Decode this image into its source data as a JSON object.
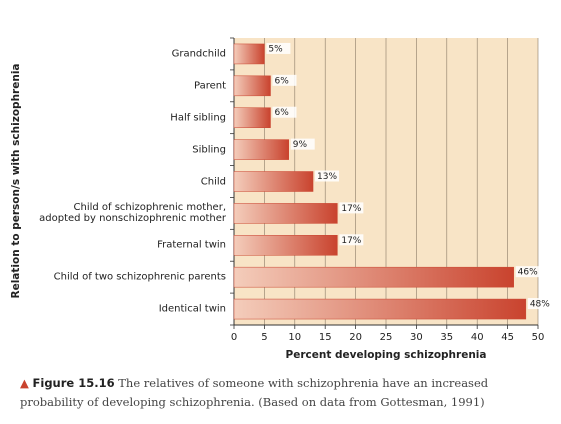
{
  "chart_data": {
    "type": "hbar",
    "ylabel": "Relation to person/s with schizophrenia",
    "xlabel": "Percent developing schizophrenia",
    "categories": [
      "Grandchild",
      "Parent",
      "Half sibling",
      "Sibling",
      "Child",
      "Child of schizophrenic mother,\nadopted by nonschizophrenic mother",
      "Fraternal twin",
      "Child of two schizophrenic parents",
      "Identical twin"
    ],
    "values": [
      5,
      6,
      6,
      9,
      13,
      17,
      17,
      46,
      48
    ],
    "value_labels": [
      "5%",
      "6%",
      "6%",
      "9%",
      "13%",
      "17%",
      "17%",
      "46%",
      "48%"
    ],
    "xlim": [
      0,
      50
    ],
    "xticks": [
      0,
      5,
      10,
      15,
      20,
      25,
      30,
      35,
      40,
      45,
      50
    ],
    "grid": true,
    "color": "#c9432e"
  },
  "caption": {
    "label": "Figure 15.16",
    "text": "The relatives of someone with schizophrenia have an increased probability of developing schizophrenia. (Based on data from Gottesman, 1991)"
  }
}
